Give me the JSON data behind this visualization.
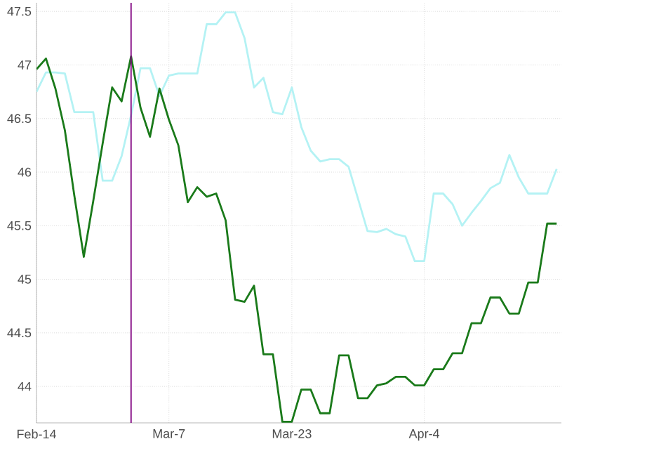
{
  "chart_data": {
    "type": "line",
    "categories": [
      "Feb-14",
      null,
      null,
      null,
      null,
      null,
      null,
      null,
      null,
      null,
      null,
      null,
      null,
      null,
      "Mar-7",
      null,
      null,
      null,
      null,
      null,
      null,
      null,
      null,
      null,
      null,
      null,
      null,
      "Mar-23",
      null,
      null,
      null,
      null,
      null,
      null,
      null,
      null,
      null,
      null,
      null,
      null,
      null,
      "Apr-4",
      null,
      null,
      null,
      null,
      null,
      null,
      null,
      null,
      null,
      null,
      null,
      null,
      null,
      null
    ],
    "series": [
      {
        "color": "#b4f2f4",
        "values": [
          46.75,
          46.93,
          46.93,
          46.92,
          46.56,
          46.56,
          46.56,
          45.92,
          45.92,
          46.15,
          46.53,
          46.97,
          46.97,
          46.71,
          46.9,
          46.92,
          46.92,
          46.92,
          47.38,
          47.38,
          47.49,
          47.49,
          47.25,
          46.79,
          46.88,
          46.56,
          46.54,
          46.79,
          46.42,
          46.2,
          46.1,
          46.12,
          46.12,
          46.05,
          45.75,
          45.45,
          45.44,
          45.47,
          45.42,
          45.4,
          45.17,
          45.17,
          45.8,
          45.8,
          45.7,
          45.5,
          45.62,
          45.73,
          45.85,
          45.9,
          46.16,
          45.95,
          45.8,
          45.8,
          45.8,
          46.03
        ]
      },
      {
        "color": "#1a7a1a",
        "values": [
          46.96,
          47.06,
          46.78,
          46.39,
          45.78,
          45.21,
          45.73,
          46.27,
          46.79,
          46.66,
          47.08,
          46.6,
          46.33,
          46.78,
          46.49,
          46.25,
          45.72,
          45.86,
          45.77,
          45.8,
          45.55,
          44.81,
          44.79,
          44.94,
          44.3,
          44.3,
          43.67,
          43.67,
          43.97,
          43.97,
          43.75,
          43.75,
          44.29,
          44.29,
          43.89,
          43.89,
          44.01,
          44.03,
          44.09,
          44.09,
          44.01,
          44.01,
          44.16,
          44.16,
          44.31,
          44.31,
          44.59,
          44.59,
          44.83,
          44.83,
          44.68,
          44.68,
          44.97,
          44.97,
          45.52,
          45.52
        ]
      }
    ],
    "ylim": [
      43.66,
      47.58
    ],
    "yticks": [
      44,
      44.5,
      45,
      45.5,
      46,
      46.5,
      47,
      47.5
    ],
    "grid": true,
    "marker": "none",
    "line_style": "solid"
  }
}
